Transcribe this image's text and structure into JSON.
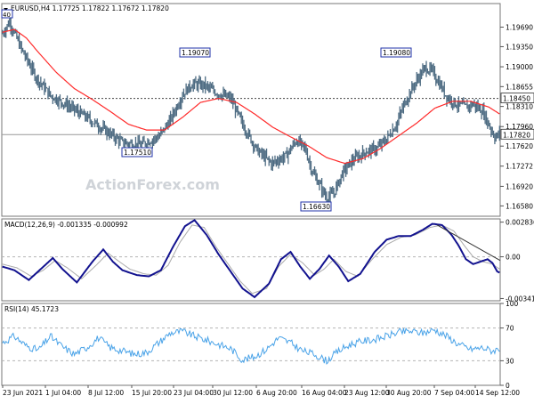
{
  "chart_data": [
    {
      "type": "candlestick",
      "panel": "price",
      "title": "EURUSD,H4  1.17725 1.17822 1.17672 1.17820",
      "y_ticks": [
        "1.19690",
        "1.19350",
        "1.19000",
        "1.18655",
        "1.18310",
        "1.17960",
        "1.17620",
        "1.17272",
        "1.16920",
        "1.16580"
      ],
      "ylim": [
        1.164,
        1.201
      ],
      "watermark": "ActionForex.com",
      "corner_label": "40",
      "current_price_label": "1.17820",
      "current_price": 1.1782,
      "level_label": "1.18450",
      "level": 1.1845,
      "annotations": [
        {
          "text": "1.17510",
          "value": 1.1751
        },
        {
          "text": "1.19070",
          "value": 1.1907
        },
        {
          "text": "1.16630",
          "value": 1.1663
        },
        {
          "text": "1.19080",
          "value": 1.1908
        }
      ],
      "close_anchors": [
        [
          0,
          1.1958
        ],
        [
          6,
          1.1978
        ],
        [
          16,
          1.193
        ],
        [
          28,
          1.1882
        ],
        [
          40,
          1.185
        ],
        [
          55,
          1.1832
        ],
        [
          70,
          1.1812
        ],
        [
          85,
          1.179
        ],
        [
          100,
          1.1768
        ],
        [
          115,
          1.1764
        ],
        [
          130,
          1.1778
        ],
        [
          140,
          1.1808
        ],
        [
          150,
          1.1852
        ],
        [
          158,
          1.187
        ],
        [
          168,
          1.1868
        ],
        [
          178,
          1.1855
        ],
        [
          190,
          1.1845
        ],
        [
          200,
          1.18
        ],
        [
          212,
          1.1755
        ],
        [
          224,
          1.1732
        ],
        [
          236,
          1.1745
        ],
        [
          245,
          1.1772
        ],
        [
          252,
          1.1758
        ],
        [
          258,
          1.1718
        ],
        [
          264,
          1.1695
        ],
        [
          270,
          1.1672
        ],
        [
          276,
          1.168
        ],
        [
          283,
          1.1715
        ],
        [
          292,
          1.1738
        ],
        [
          302,
          1.1752
        ],
        [
          312,
          1.1758
        ],
        [
          320,
          1.1775
        ],
        [
          328,
          1.18
        ],
        [
          334,
          1.1832
        ],
        [
          340,
          1.1858
        ],
        [
          346,
          1.188
        ],
        [
          352,
          1.1898
        ],
        [
          358,
          1.1892
        ],
        [
          364,
          1.187
        ],
        [
          370,
          1.1848
        ],
        [
          378,
          1.1835
        ],
        [
          386,
          1.183
        ],
        [
          392,
          1.1835
        ],
        [
          400,
          1.1822
        ],
        [
          406,
          1.1795
        ],
        [
          410,
          1.1778
        ],
        [
          414,
          1.1782
        ]
      ],
      "ma_anchors": [
        [
          0,
          1.196
        ],
        [
          10,
          1.1965
        ],
        [
          20,
          1.195
        ],
        [
          30,
          1.1925
        ],
        [
          45,
          1.189
        ],
        [
          60,
          1.1862
        ],
        [
          75,
          1.1843
        ],
        [
          90,
          1.1822
        ],
        [
          105,
          1.18
        ],
        [
          120,
          1.179
        ],
        [
          135,
          1.179
        ],
        [
          150,
          1.1812
        ],
        [
          165,
          1.1838
        ],
        [
          180,
          1.1845
        ],
        [
          195,
          1.1838
        ],
        [
          210,
          1.1818
        ],
        [
          225,
          1.1795
        ],
        [
          240,
          1.1778
        ],
        [
          255,
          1.1762
        ],
        [
          270,
          1.1742
        ],
        [
          285,
          1.1732
        ],
        [
          300,
          1.174
        ],
        [
          315,
          1.1758
        ],
        [
          330,
          1.178
        ],
        [
          345,
          1.1802
        ],
        [
          360,
          1.1828
        ],
        [
          375,
          1.184
        ],
        [
          390,
          1.184
        ],
        [
          405,
          1.183
        ],
        [
          414,
          1.1818
        ]
      ]
    },
    {
      "type": "macd",
      "panel": "macd",
      "title": "MACD(12,26,9) -0.001335 -0.000992",
      "y_ticks": [
        "0.002836",
        "0.00",
        "-0.003415"
      ],
      "ylim": [
        -0.0036,
        0.0031
      ],
      "macd_anchors": [
        [
          0,
          -0.0008
        ],
        [
          10,
          -0.0011
        ],
        [
          22,
          -0.0019
        ],
        [
          32,
          -0.001
        ],
        [
          42,
          -0.0001
        ],
        [
          50,
          -0.001
        ],
        [
          62,
          -0.0021
        ],
        [
          75,
          -0.0004
        ],
        [
          84,
          0.0006
        ],
        [
          92,
          -0.0004
        ],
        [
          100,
          -0.0011
        ],
        [
          112,
          -0.0015
        ],
        [
          122,
          -0.0016
        ],
        [
          132,
          -0.0011
        ],
        [
          142,
          0.0008
        ],
        [
          152,
          0.0025
        ],
        [
          160,
          0.003
        ],
        [
          170,
          0.0018
        ],
        [
          180,
          0.0002
        ],
        [
          190,
          -0.0012
        ],
        [
          200,
          -0.0026
        ],
        [
          210,
          -0.0033
        ],
        [
          222,
          -0.0022
        ],
        [
          232,
          -0.0002
        ],
        [
          240,
          0.0004
        ],
        [
          248,
          -0.0008
        ],
        [
          256,
          -0.0018
        ],
        [
          264,
          -0.001
        ],
        [
          272,
          0.0001
        ],
        [
          280,
          -0.0008
        ],
        [
          288,
          -0.002
        ],
        [
          298,
          -0.0014
        ],
        [
          310,
          0.0004
        ],
        [
          320,
          0.0014
        ],
        [
          330,
          0.0017
        ],
        [
          340,
          0.0017
        ],
        [
          350,
          0.0022
        ],
        [
          358,
          0.0027
        ],
        [
          366,
          0.0026
        ],
        [
          374,
          0.0018
        ],
        [
          380,
          0.0009
        ],
        [
          386,
          -0.0002
        ],
        [
          392,
          -0.0006
        ],
        [
          398,
          -0.0004
        ],
        [
          404,
          -0.0002
        ],
        [
          408,
          -0.0005
        ],
        [
          412,
          -0.0012
        ],
        [
          414,
          -0.0013
        ]
      ],
      "signal_anchors": [
        [
          0,
          -0.0006
        ],
        [
          12,
          -0.0009
        ],
        [
          24,
          -0.0016
        ],
        [
          34,
          -0.0011
        ],
        [
          44,
          -0.0003
        ],
        [
          54,
          -0.0009
        ],
        [
          66,
          -0.0018
        ],
        [
          78,
          -0.0007
        ],
        [
          88,
          0.0003
        ],
        [
          96,
          -0.0003
        ],
        [
          106,
          -0.001
        ],
        [
          118,
          -0.0014
        ],
        [
          128,
          -0.0015
        ],
        [
          138,
          -0.0007
        ],
        [
          148,
          0.0012
        ],
        [
          158,
          0.0026
        ],
        [
          168,
          0.0024
        ],
        [
          178,
          0.0008
        ],
        [
          188,
          -0.0006
        ],
        [
          198,
          -0.002
        ],
        [
          208,
          -0.003
        ],
        [
          220,
          -0.0026
        ],
        [
          230,
          -0.0008
        ],
        [
          240,
          0.0002
        ],
        [
          250,
          -0.0005
        ],
        [
          260,
          -0.0015
        ],
        [
          268,
          -0.001
        ],
        [
          276,
          -0.0002
        ],
        [
          286,
          -0.0012
        ],
        [
          296,
          -0.0016
        ],
        [
          308,
          -0.0002
        ],
        [
          320,
          0.001
        ],
        [
          332,
          0.0016
        ],
        [
          344,
          0.0018
        ],
        [
          356,
          0.0024
        ],
        [
          366,
          0.0026
        ],
        [
          376,
          0.0021
        ],
        [
          384,
          0.001
        ],
        [
          392,
          0.0
        ],
        [
          400,
          -0.0004
        ],
        [
          408,
          -0.0006
        ],
        [
          414,
          -0.001
        ]
      ],
      "trendline": [
        [
          362,
          0.0026
        ],
        [
          414,
          -0.0003
        ]
      ]
    },
    {
      "type": "line",
      "panel": "rsi",
      "title": "RSI(14) 45.1723",
      "y_ticks": [
        "100",
        "70",
        "30",
        "0"
      ],
      "ylim": [
        0,
        100
      ],
      "levels": [
        70,
        30
      ],
      "rsi_anchors": [
        [
          0,
          52
        ],
        [
          10,
          60
        ],
        [
          20,
          48
        ],
        [
          30,
          43
        ],
        [
          40,
          60
        ],
        [
          50,
          47
        ],
        [
          60,
          38
        ],
        [
          70,
          46
        ],
        [
          80,
          58
        ],
        [
          90,
          46
        ],
        [
          100,
          42
        ],
        [
          110,
          38
        ],
        [
          120,
          40
        ],
        [
          130,
          52
        ],
        [
          140,
          64
        ],
        [
          150,
          66
        ],
        [
          160,
          60
        ],
        [
          170,
          55
        ],
        [
          180,
          50
        ],
        [
          190,
          45
        ],
        [
          200,
          31
        ],
        [
          210,
          35
        ],
        [
          220,
          44
        ],
        [
          230,
          58
        ],
        [
          240,
          52
        ],
        [
          250,
          42
        ],
        [
          260,
          38
        ],
        [
          270,
          30
        ],
        [
          280,
          42
        ],
        [
          290,
          50
        ],
        [
          300,
          54
        ],
        [
          310,
          56
        ],
        [
          320,
          60
        ],
        [
          330,
          65
        ],
        [
          340,
          66
        ],
        [
          350,
          64
        ],
        [
          360,
          68
        ],
        [
          370,
          60
        ],
        [
          380,
          50
        ],
        [
          390,
          44
        ],
        [
          400,
          46
        ],
        [
          408,
          42
        ],
        [
          414,
          45
        ]
      ]
    }
  ],
  "x_ticks": [
    "23 Jun 2021",
    "1 Jul 04:00",
    "8 Jul 12:00",
    "15 Jul 20:00",
    "23 Jul 04:00",
    "30 Jul 12:00",
    "6 Aug 20:00",
    "16 Aug 04:00",
    "23 Aug 12:00",
    "30 Aug 20:00",
    "7 Sep 04:00",
    "14 Sep 12:00"
  ],
  "colors": {
    "bar": "#4d6b82",
    "ma": "#ff2a2a",
    "macd": "#12128f",
    "signal": "#aaaaaa",
    "rsi": "#4aa3e8",
    "grid": "#b4b4b4",
    "label_border": "#2233aa"
  }
}
